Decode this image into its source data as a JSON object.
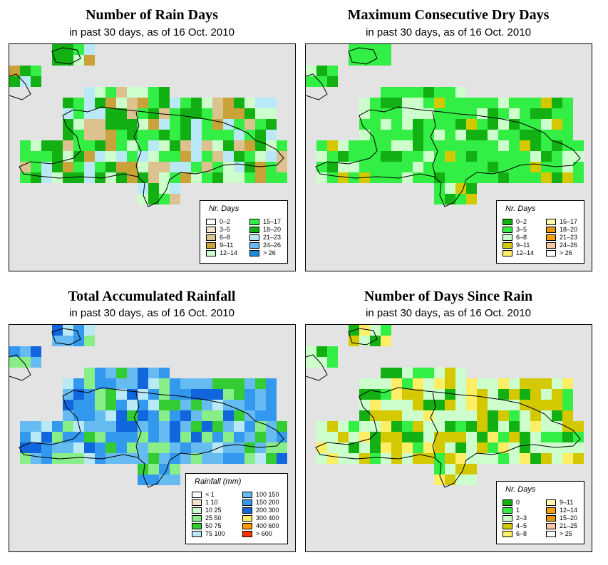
{
  "panels": [
    {
      "id": "rain-days",
      "title": "Number of Rain Days",
      "subtitle": "in past 30 days, as of  16 Oct. 2010",
      "legend_title": "Nr. Days",
      "legend": [
        {
          "label": "0–2",
          "color": "#ffffff"
        },
        {
          "label": "3–5",
          "color": "#f3e6cf"
        },
        {
          "label": "6–8",
          "color": "#dcc28f"
        },
        {
          "label": "9–11",
          "color": "#c9a23a"
        },
        {
          "label": "12–14",
          "color": "#ccffcc"
        },
        {
          "label": "15–17",
          "color": "#33ee44"
        },
        {
          "label": "18–20",
          "color": "#12b012"
        },
        {
          "label": "21–23",
          "color": "#b9e8f6"
        },
        {
          "label": "24–26",
          "color": "#66bbf0"
        },
        {
          "label": "> 26",
          "color": "#1a8ad8"
        }
      ]
    },
    {
      "id": "dry-days",
      "title": "Maximum Consecutive Dry Days",
      "subtitle": "in past 30 days, as of  16 Oct. 2010",
      "legend_title": "Nr. Days",
      "legend": [
        {
          "label": "0–2",
          "color": "#12b012"
        },
        {
          "label": "3–5",
          "color": "#33ee44"
        },
        {
          "label": "6–8",
          "color": "#ccffcc"
        },
        {
          "label": "9–11",
          "color": "#d4c900"
        },
        {
          "label": "12–14",
          "color": "#ffee66"
        },
        {
          "label": "15–17",
          "color": "#fffab0"
        },
        {
          "label": "18–20",
          "color": "#e69500"
        },
        {
          "label": "21–23",
          "color": "#f4a100"
        },
        {
          "label": "24–26",
          "color": "#fcc6a4"
        },
        {
          "label": "> 26",
          "color": "#ffffff"
        }
      ]
    },
    {
      "id": "rainfall",
      "title": "Total Accumulated Rainfall",
      "subtitle": "in past 30 days, as of  16 Oct. 2010",
      "legend_title": "Rainfall (mm)",
      "legend": [
        {
          "label": "< 1",
          "color": "#ffffff"
        },
        {
          "label": "1    10",
          "color": "#f3e6cf"
        },
        {
          "label": "10    25",
          "color": "#ccffcc"
        },
        {
          "label": "25    50",
          "color": "#88ee88"
        },
        {
          "label": "50    75",
          "color": "#33cc33"
        },
        {
          "label": "75   100",
          "color": "#b9e8f6"
        },
        {
          "label": "100   150",
          "color": "#66bbf0"
        },
        {
          "label": "150   200",
          "color": "#3399ee"
        },
        {
          "label": "200   300",
          "color": "#1166dd"
        },
        {
          "label": "300   400",
          "color": "#ffee66"
        },
        {
          "label": "400   600",
          "color": "#ff9900"
        },
        {
          "label": "> 600",
          "color": "#ff3300"
        }
      ]
    },
    {
      "id": "since-rain",
      "title": "Number of Days Since Rain",
      "subtitle": "in past 30 days, as of  16 Oct. 2010",
      "legend_title": "Nr. Days",
      "legend": [
        {
          "label": "0",
          "color": "#12b012"
        },
        {
          "label": "1",
          "color": "#33ee44"
        },
        {
          "label": "2–3",
          "color": "#ccffcc"
        },
        {
          "label": "4–5",
          "color": "#d4c900"
        },
        {
          "label": "6–8",
          "color": "#ffee66"
        },
        {
          "label": "9–11",
          "color": "#fffab0"
        },
        {
          "label": "12–14",
          "color": "#f4a100"
        },
        {
          "label": "15–20",
          "color": "#e69500"
        },
        {
          "label": "21–25",
          "color": "#fcc6a4"
        },
        {
          "label": "> 25",
          "color": "#ffffff"
        }
      ]
    }
  ]
}
